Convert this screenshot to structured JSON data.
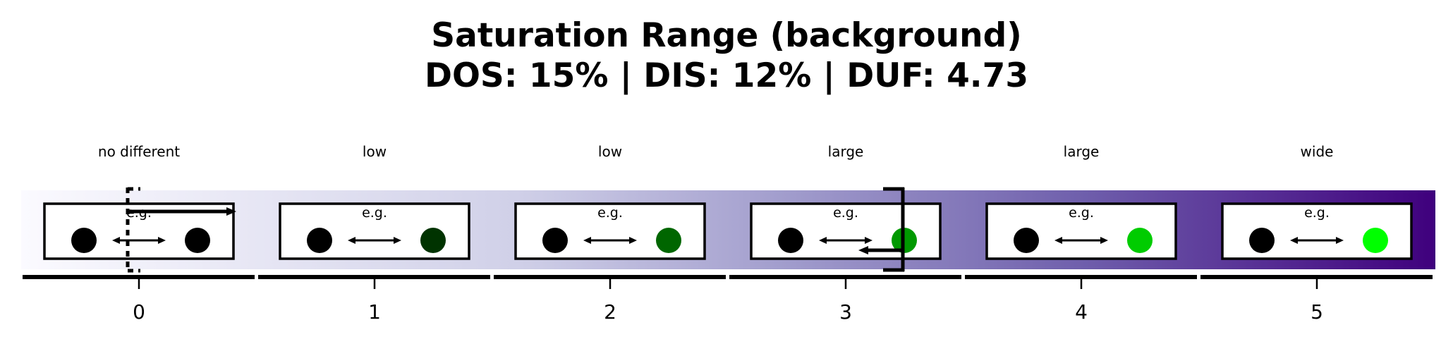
{
  "title": {
    "line1": "Saturation Range (background)",
    "line2": "DOS: 15% | DIS: 12% | DUF: 4.73"
  },
  "gradient": {
    "start_color": "#fbfaff",
    "end_color": "#3f007d"
  },
  "example_label": "e.g.",
  "reference_circle_color": "#000000",
  "levels": [
    {
      "tick": "0",
      "label": "no different",
      "circle_color": "#000000"
    },
    {
      "tick": "1",
      "label": "low",
      "circle_color": "#003300"
    },
    {
      "tick": "2",
      "label": "low",
      "circle_color": "#006600"
    },
    {
      "tick": "3",
      "label": "large",
      "circle_color": "#009900"
    },
    {
      "tick": "4",
      "label": "large",
      "circle_color": "#00cc00"
    },
    {
      "tick": "5",
      "label": "wide",
      "circle_color": "#00ff00"
    }
  ],
  "range_markers": {
    "dos_start_level": 0,
    "dis_end_level": 3
  }
}
